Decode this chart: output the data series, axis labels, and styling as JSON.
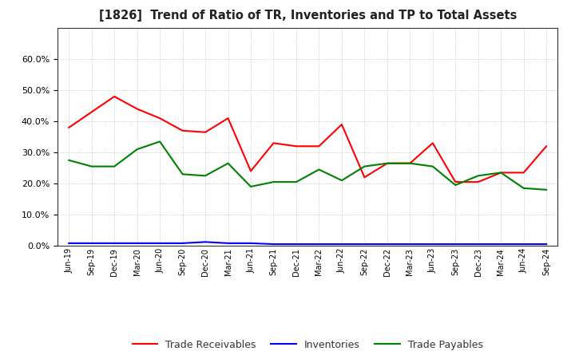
{
  "title": "[1826]  Trend of Ratio of TR, Inventories and TP to Total Assets",
  "x_labels": [
    "Jun-19",
    "Sep-19",
    "Dec-19",
    "Mar-20",
    "Jun-20",
    "Sep-20",
    "Dec-20",
    "Mar-21",
    "Jun-21",
    "Sep-21",
    "Dec-21",
    "Mar-22",
    "Jun-22",
    "Sep-22",
    "Dec-22",
    "Mar-23",
    "Jun-23",
    "Sep-23",
    "Dec-23",
    "Mar-24",
    "Jun-24",
    "Sep-24"
  ],
  "trade_receivables": [
    0.38,
    0.43,
    0.48,
    0.44,
    0.41,
    0.37,
    0.365,
    0.41,
    0.24,
    0.33,
    0.32,
    0.32,
    0.39,
    0.22,
    0.265,
    0.265,
    0.33,
    0.205,
    0.205,
    0.235,
    0.235,
    0.32
  ],
  "inventories": [
    0.008,
    0.008,
    0.008,
    0.008,
    0.008,
    0.008,
    0.012,
    0.008,
    0.008,
    0.005,
    0.005,
    0.005,
    0.005,
    0.005,
    0.005,
    0.005,
    0.005,
    0.005,
    0.005,
    0.005,
    0.005,
    0.005
  ],
  "trade_payables": [
    0.275,
    0.255,
    0.255,
    0.31,
    0.335,
    0.23,
    0.225,
    0.265,
    0.19,
    0.205,
    0.205,
    0.245,
    0.21,
    0.255,
    0.265,
    0.265,
    0.255,
    0.195,
    0.225,
    0.235,
    0.185,
    0.18
  ],
  "tr_color": "#ff0000",
  "inv_color": "#0000ff",
  "tp_color": "#008000",
  "ylim": [
    0.0,
    0.7
  ],
  "yticks": [
    0.0,
    0.1,
    0.2,
    0.3,
    0.4,
    0.5,
    0.6
  ],
  "background_color": "#ffffff",
  "grid_color": "#aaaaaa",
  "legend_labels": [
    "Trade Receivables",
    "Inventories",
    "Trade Payables"
  ]
}
